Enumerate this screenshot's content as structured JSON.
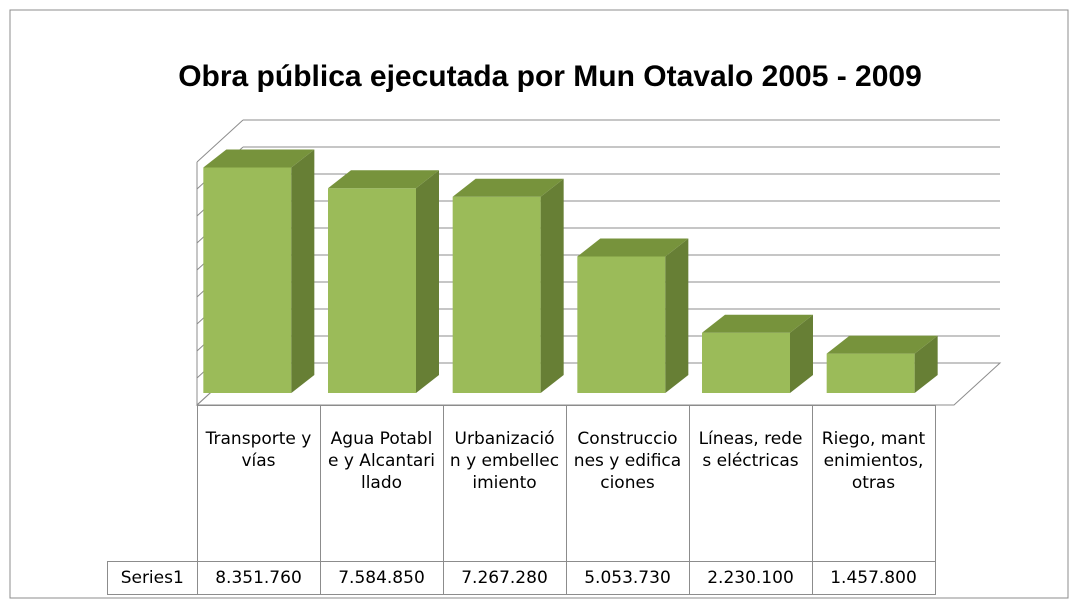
{
  "chart_data": {
    "type": "bar3d",
    "title": "Obra pública ejecutada por  Mun Otavalo 2005 - 2009",
    "categories": [
      "Transporte y vías",
      "Agua Potable y Alcantarillado",
      "Urbanización y embellecimiento",
      "Construcciones y edificaciones",
      "Líneas, redes eléctricas",
      "Riego, mantenimientos, otras"
    ],
    "series": [
      {
        "name": "Series1",
        "color": "#9bbb59",
        "values": [
          8351760,
          7584850,
          7267280,
          5053730,
          2230100,
          1457800
        ],
        "value_labels": [
          "8.351.760",
          "7.584.850",
          "7.267.280",
          "5.053.730",
          "2.230.100",
          "1.457.800"
        ]
      }
    ],
    "ylim": [
      0,
      9000000
    ],
    "yticks": [
      0,
      1000000,
      2000000,
      3000000,
      4000000,
      5000000,
      6000000,
      7000000,
      8000000,
      9000000
    ],
    "grid": true
  }
}
